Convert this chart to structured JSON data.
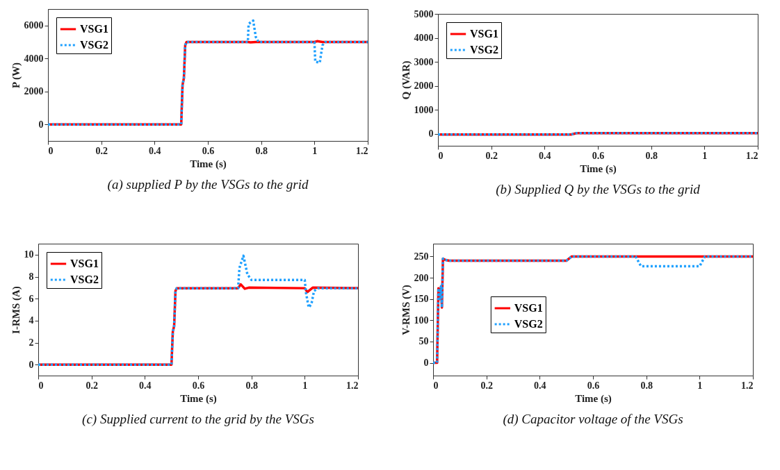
{
  "chart_data": [
    {
      "type": "line",
      "title": "(a) supplied P by the VSGs to the grid",
      "xlabel": "Time (s)",
      "ylabel": "P (W)",
      "xlim": [
        0,
        1.2
      ],
      "xticks": [
        0,
        0.2,
        0.4,
        0.6,
        0.8,
        1,
        1.2
      ],
      "ylim": [
        -1000,
        7000
      ],
      "yticks": [
        0,
        2000,
        4000,
        6000
      ],
      "legend": "top left",
      "series": [
        {
          "name": "VSG1",
          "color": "#ff0000",
          "line_style": "solid",
          "x": [
            0,
            0.5,
            0.505,
            0.51,
            0.515,
            0.52,
            0.75,
            0.76,
            0.78,
            0.8,
            1.0,
            1.01,
            1.03,
            1.04,
            1.2
          ],
          "values": [
            0,
            0,
            2400,
            2800,
            4800,
            5000,
            5000,
            4980,
            5000,
            5000,
            5000,
            5050,
            5000,
            5000,
            5000
          ]
        },
        {
          "name": "VSG2",
          "color": "#1ea0ff",
          "line_style": "dotted",
          "x": [
            0,
            0.5,
            0.505,
            0.51,
            0.515,
            0.52,
            0.75,
            0.753,
            0.77,
            0.78,
            0.79,
            1.0,
            1.003,
            1.02,
            1.03,
            1.04,
            1.2
          ],
          "values": [
            0,
            0,
            2400,
            2800,
            4800,
            5000,
            5000,
            6100,
            6300,
            5300,
            5000,
            5000,
            3800,
            3750,
            4800,
            5000,
            5000
          ]
        }
      ]
    },
    {
      "type": "line",
      "title": "(b) Supplied Q by the VSGs to the grid",
      "xlabel": "Time (s)",
      "ylabel": "Q (VAR)",
      "xlim": [
        0,
        1.2
      ],
      "xticks": [
        0,
        0.2,
        0.4,
        0.6,
        0.8,
        1,
        1.2
      ],
      "ylim": [
        -500,
        5000
      ],
      "yticks": [
        0,
        1000,
        2000,
        3000,
        4000,
        5000
      ],
      "legend": "top left",
      "series": [
        {
          "name": "VSG1",
          "color": "#ff0000",
          "line_style": "solid",
          "x": [
            0,
            0.5,
            0.52,
            1.2
          ],
          "values": [
            -30,
            -30,
            30,
            30
          ]
        },
        {
          "name": "VSG2",
          "color": "#1ea0ff",
          "line_style": "dotted",
          "x": [
            0,
            0.5,
            0.52,
            1.2
          ],
          "values": [
            -30,
            -30,
            30,
            30
          ]
        }
      ]
    },
    {
      "type": "line",
      "title": "(c) Supplied current to the grid by the VSGs",
      "xlabel": "Time (s)",
      "ylabel": "I-RMS (A)",
      "xlim": [
        0,
        1.2
      ],
      "xticks": [
        0,
        0.2,
        0.4,
        0.6,
        0.8,
        1,
        1.2
      ],
      "ylim": [
        -1,
        11
      ],
      "yticks": [
        0,
        2,
        4,
        6,
        8,
        10
      ],
      "legend": "top left",
      "series": [
        {
          "name": "VSG1",
          "color": "#ff0000",
          "line_style": "solid",
          "x": [
            0,
            0.5,
            0.505,
            0.51,
            0.515,
            0.52,
            0.75,
            0.76,
            0.775,
            0.79,
            1.0,
            1.01,
            1.03,
            1.2
          ],
          "values": [
            0,
            0,
            3,
            3.5,
            6.7,
            6.95,
            6.95,
            7.3,
            6.9,
            7.0,
            6.95,
            6.6,
            7.0,
            6.95
          ]
        },
        {
          "name": "VSG2",
          "color": "#1ea0ff",
          "line_style": "dotted",
          "x": [
            0,
            0.5,
            0.505,
            0.51,
            0.515,
            0.52,
            0.75,
            0.755,
            0.77,
            0.785,
            0.8,
            1.0,
            1.005,
            1.015,
            1.025,
            1.035,
            1.05,
            1.2
          ],
          "values": [
            0,
            0,
            3,
            3.5,
            6.7,
            6.95,
            6.95,
            8.8,
            9.9,
            8.2,
            7.7,
            7.7,
            6.5,
            5.2,
            5.5,
            6.7,
            6.95,
            6.95
          ]
        }
      ]
    },
    {
      "type": "line",
      "title": "(d) Capacitor voltage of the VSGs",
      "xlabel": "Time (s)",
      "ylabel": "V-RMS (V)",
      "xlim": [
        0,
        1.2
      ],
      "xticks": [
        0,
        0.2,
        0.4,
        0.6,
        0.8,
        1,
        1.2
      ],
      "ylim": [
        -30,
        280
      ],
      "yticks": [
        0,
        50,
        100,
        150,
        200,
        250
      ],
      "legend": "left",
      "series": [
        {
          "name": "VSG1",
          "color": "#ff0000",
          "line_style": "solid",
          "x": [
            0,
            0.015,
            0.02,
            0.025,
            0.03,
            0.033,
            0.037,
            0.045,
            0.06,
            0.5,
            0.52,
            0.76,
            1.2
          ],
          "values": [
            0,
            0,
            175,
            150,
            180,
            130,
            245,
            242,
            240,
            240,
            250,
            250,
            250
          ]
        },
        {
          "name": "VSG2",
          "color": "#1ea0ff",
          "line_style": "dotted",
          "x": [
            0,
            0.015,
            0.02,
            0.025,
            0.03,
            0.033,
            0.037,
            0.045,
            0.06,
            0.5,
            0.52,
            0.76,
            0.78,
            1.0,
            1.02,
            1.2
          ],
          "values": [
            0,
            0,
            175,
            150,
            180,
            130,
            245,
            242,
            240,
            240,
            250,
            250,
            227,
            227,
            250,
            250
          ]
        }
      ]
    }
  ]
}
